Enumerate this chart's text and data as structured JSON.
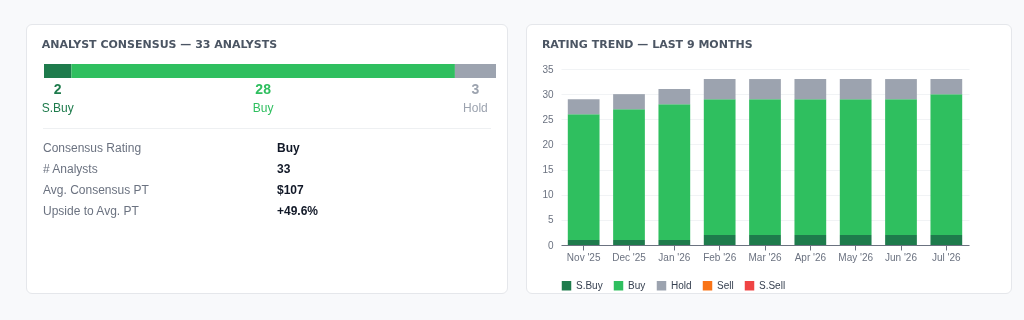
{
  "chart_data": [
    {
      "type": "bar",
      "title": "ANALYST CONSENSUS — 33 ANALYSTS",
      "orientation": "horizontal",
      "stacked": true,
      "data_labels": true,
      "legend": false,
      "categories": [
        null
      ],
      "series": [
        {
          "name": "S.Buy",
          "color": "#1e7b4c",
          "values": [
            2
          ]
        },
        {
          "name": "Buy",
          "color": "#2fbf5f",
          "values": [
            28
          ]
        },
        {
          "name": "Hold",
          "color": "#9ca3af",
          "values": [
            3
          ]
        }
      ],
      "annotations": [
        "Consensus Rating",
        "Buy",
        "# Analysts",
        "33",
        "Avg. Consensus PT",
        "$107",
        "Upside to Avg. PT",
        "+49.6%"
      ]
    },
    {
      "type": "bar",
      "title": "RATING TREND — LAST 9 MONTHS",
      "stacked": true,
      "legend": "bottom",
      "grid": "y",
      "ylim": [
        0,
        35
      ],
      "yticks": [
        0,
        5,
        10,
        15,
        20,
        25,
        30,
        35
      ],
      "categories": [
        "Nov '25",
        "Dec '25",
        "Jan '26",
        "Feb '26",
        "Mar '26",
        "Apr '26",
        "May '26",
        "Jun '26",
        "Jul '26"
      ],
      "series": [
        {
          "name": "S.Buy",
          "color": "#1e7b4c",
          "values": [
            1,
            1,
            1,
            2,
            2,
            2,
            2,
            2,
            2
          ]
        },
        {
          "name": "Buy",
          "color": "#2fbf5f",
          "values": [
            25,
            26,
            27,
            27,
            27,
            27,
            27,
            27,
            28
          ]
        },
        {
          "name": "Hold",
          "color": "#9ca3af",
          "values": [
            3,
            3,
            3,
            4,
            4,
            4,
            4,
            4,
            3
          ]
        },
        {
          "name": "Sell",
          "color": "#f97316",
          "values": [
            0,
            0,
            0,
            0,
            0,
            0,
            0,
            0,
            0
          ]
        },
        {
          "name": "S.Sell",
          "color": "#ef4444",
          "values": [
            0,
            0,
            0,
            0,
            0,
            0,
            0,
            0,
            0
          ]
        }
      ]
    }
  ]
}
